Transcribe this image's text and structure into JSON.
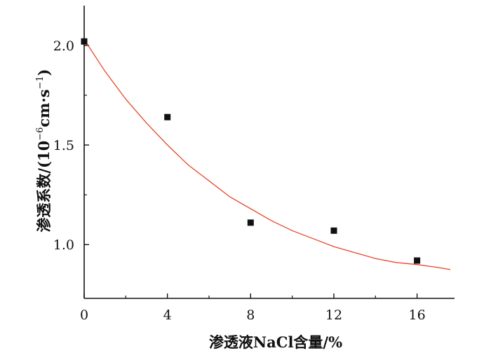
{
  "chart_data": {
    "type": "scatter",
    "xlabel": "渗透液NaCl含量/%",
    "ylabel": {
      "prefix": "渗透系数/(10",
      "exp1": "−6",
      "middle": "cm·s",
      "exp2": "−1",
      "suffix": ")"
    },
    "xlim": [
      0,
      17.8
    ],
    "ylim": [
      0.73,
      2.2
    ],
    "x_ticks": [
      0,
      4,
      8,
      12,
      16
    ],
    "x_tick_labels": [
      "0",
      "4",
      "8",
      "12",
      "16"
    ],
    "x_minor_ticks": [
      2,
      6,
      10,
      14
    ],
    "y_ticks": [
      1.0,
      1.5,
      2.0
    ],
    "y_tick_labels": [
      "1.0",
      "1.5",
      "2.0"
    ],
    "y_minor_ticks": [
      1.25,
      1.75
    ],
    "series": [
      {
        "kind": "points",
        "marker": "square",
        "color": "#111111",
        "x": [
          0,
          4,
          8,
          12,
          16
        ],
        "y": [
          2.02,
          1.64,
          1.11,
          1.07,
          0.92
        ]
      },
      {
        "kind": "fit-curve",
        "color": "#e8472b",
        "x": [
          0,
          1,
          2,
          3,
          4,
          5,
          6,
          7,
          8,
          9,
          10,
          11,
          12,
          13,
          14,
          15,
          16,
          17,
          17.6
        ],
        "y": [
          2.03,
          1.87,
          1.73,
          1.61,
          1.5,
          1.4,
          1.32,
          1.24,
          1.18,
          1.12,
          1.07,
          1.03,
          0.99,
          0.96,
          0.93,
          0.91,
          0.9,
          0.885,
          0.875
        ]
      }
    ],
    "grid": false,
    "legend": "none"
  }
}
